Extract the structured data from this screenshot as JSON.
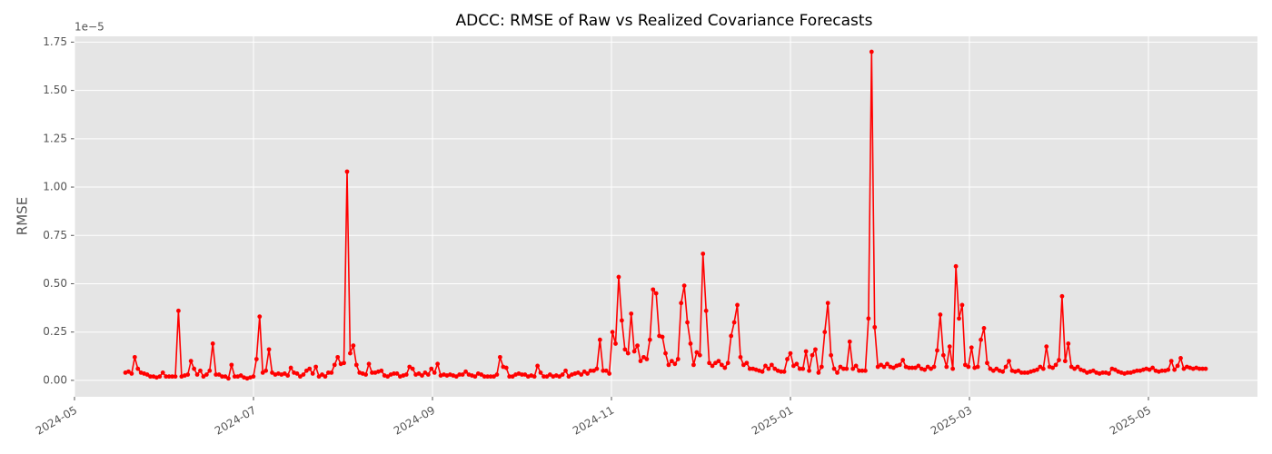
{
  "chart_data": {
    "type": "line",
    "title": "ADCC: RMSE of Raw vs Realized Covariance Forecasts",
    "y_label": "RMSE",
    "y_offset_label": "1e−5",
    "xticks": [
      "2024-05",
      "2024-07",
      "2024-09",
      "2024-11",
      "2025-01",
      "2025-03",
      "2025-05"
    ],
    "ylim": [
      -0.085,
      1.78
    ],
    "yticks": [
      {
        "value": 0,
        "label": "0.00"
      },
      0.25,
      {
        "value": 0.5,
        "label": "0.50"
      },
      0.75,
      {
        "value": 1,
        "label": "1.00"
      },
      1.25,
      {
        "value": 1.5,
        "label": "1.50"
      },
      1.75
    ],
    "grid": true,
    "series": [
      {
        "name": "RMSE",
        "color": "#ff0000",
        "values": [
          0.04,
          0.045,
          0.035,
          0.12,
          0.06,
          0.04,
          0.035,
          0.03,
          0.02,
          0.02,
          0.015,
          0.02,
          0.04,
          0.02,
          0.02,
          0.02,
          0.02,
          0.36,
          0.02,
          0.025,
          0.03,
          0.1,
          0.06,
          0.03,
          0.05,
          0.02,
          0.03,
          0.05,
          0.19,
          0.03,
          0.03,
          0.02,
          0.02,
          0.01,
          0.08,
          0.02,
          0.02,
          0.025,
          0.015,
          0.01,
          0.015,
          0.02,
          0.11,
          0.33,
          0.04,
          0.05,
          0.16,
          0.04,
          0.03,
          0.035,
          0.03,
          0.035,
          0.025,
          0.065,
          0.04,
          0.035,
          0.02,
          0.03,
          0.05,
          0.06,
          0.035,
          0.07,
          0.02,
          0.03,
          0.02,
          0.04,
          0.04,
          0.08,
          0.12,
          0.085,
          0.09,
          1.08,
          0.14,
          0.18,
          0.08,
          0.04,
          0.035,
          0.03,
          0.085,
          0.04,
          0.04,
          0.045,
          0.05,
          0.025,
          0.02,
          0.03,
          0.035,
          0.035,
          0.02,
          0.025,
          0.03,
          0.07,
          0.06,
          0.03,
          0.035,
          0.025,
          0.04,
          0.03,
          0.06,
          0.04,
          0.085,
          0.025,
          0.03,
          0.025,
          0.03,
          0.025,
          0.02,
          0.03,
          0.03,
          0.045,
          0.03,
          0.025,
          0.02,
          0.035,
          0.03,
          0.02,
          0.02,
          0.02,
          0.02,
          0.03,
          0.12,
          0.07,
          0.065,
          0.02,
          0.02,
          0.03,
          0.035,
          0.03,
          0.03,
          0.02,
          0.025,
          0.02,
          0.075,
          0.04,
          0.02,
          0.02,
          0.03,
          0.02,
          0.025,
          0.02,
          0.03,
          0.05,
          0.02,
          0.03,
          0.035,
          0.04,
          0.03,
          0.045,
          0.035,
          0.05,
          0.05,
          0.06,
          0.21,
          0.05,
          0.05,
          0.035,
          0.25,
          0.19,
          0.535,
          0.31,
          0.16,
          0.14,
          0.345,
          0.15,
          0.18,
          0.1,
          0.12,
          0.11,
          0.21,
          0.47,
          0.45,
          0.23,
          0.225,
          0.14,
          0.08,
          0.1,
          0.085,
          0.11,
          0.4,
          0.49,
          0.3,
          0.19,
          0.08,
          0.145,
          0.13,
          0.655,
          0.36,
          0.09,
          0.075,
          0.09,
          0.1,
          0.08,
          0.065,
          0.09,
          0.23,
          0.3,
          0.39,
          0.12,
          0.08,
          0.09,
          0.06,
          0.06,
          0.055,
          0.05,
          0.045,
          0.075,
          0.06,
          0.08,
          0.06,
          0.05,
          0.045,
          0.045,
          0.11,
          0.14,
          0.075,
          0.085,
          0.06,
          0.06,
          0.15,
          0.05,
          0.13,
          0.16,
          0.04,
          0.07,
          0.25,
          0.4,
          0.13,
          0.06,
          0.04,
          0.07,
          0.06,
          0.06,
          0.2,
          0.06,
          0.075,
          0.05,
          0.05,
          0.05,
          0.32,
          1.7,
          0.275,
          0.07,
          0.08,
          0.07,
          0.085,
          0.07,
          0.065,
          0.075,
          0.08,
          0.105,
          0.07,
          0.065,
          0.065,
          0.065,
          0.075,
          0.06,
          0.055,
          0.07,
          0.06,
          0.07,
          0.155,
          0.34,
          0.13,
          0.07,
          0.175,
          0.06,
          0.59,
          0.32,
          0.39,
          0.08,
          0.07,
          0.17,
          0.065,
          0.07,
          0.21,
          0.27,
          0.09,
          0.06,
          0.05,
          0.06,
          0.05,
          0.045,
          0.07,
          0.1,
          0.05,
          0.045,
          0.05,
          0.04,
          0.04,
          0.04,
          0.045,
          0.05,
          0.055,
          0.07,
          0.06,
          0.175,
          0.07,
          0.065,
          0.08,
          0.105,
          0.435,
          0.1,
          0.19,
          0.07,
          0.06,
          0.07,
          0.055,
          0.05,
          0.04,
          0.045,
          0.05,
          0.04,
          0.035,
          0.04,
          0.04,
          0.035,
          0.06,
          0.055,
          0.045,
          0.04,
          0.035,
          0.04,
          0.04,
          0.045,
          0.05,
          0.05,
          0.055,
          0.06,
          0.055,
          0.065,
          0.05,
          0.045,
          0.05,
          0.05,
          0.055,
          0.1,
          0.055,
          0.075,
          0.115,
          0.06,
          0.07,
          0.065,
          0.06,
          0.065,
          0.06,
          0.06,
          0.06
        ]
      }
    ]
  }
}
